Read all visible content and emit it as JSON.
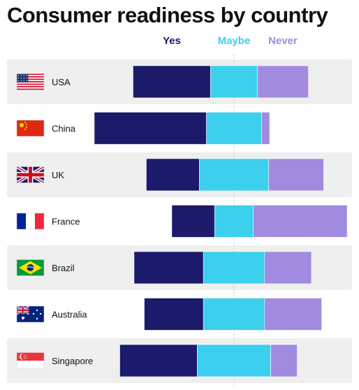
{
  "chart_data": {
    "type": "bar",
    "orientation": "horizontal",
    "stacked": true,
    "diverging": true,
    "title": "Consumer readiness by country",
    "legend_position": "top",
    "categories": [
      "USA",
      "China",
      "UK",
      "France",
      "Brazil",
      "Australia",
      "Singapore"
    ],
    "series": [
      {
        "name": "Yes",
        "color": "#1b1a6b",
        "values": [
          38,
          55,
          26,
          21,
          34,
          29,
          38
        ]
      },
      {
        "name": "Maybe",
        "color": "#3ccfee",
        "values": [
          23,
          27,
          34,
          19,
          30,
          30,
          36
        ]
      },
      {
        "name": "Never",
        "color": "#a18be0",
        "values": [
          25,
          4,
          27,
          46,
          23,
          28,
          13
        ]
      }
    ],
    "flag_icons": [
      "usa-flag-icon",
      "china-flag-icon",
      "uk-flag-icon",
      "france-flag-icon",
      "brazil-flag-icon",
      "australia-flag-icon",
      "singapore-flag-icon"
    ],
    "grid": false,
    "center_line": true
  }
}
